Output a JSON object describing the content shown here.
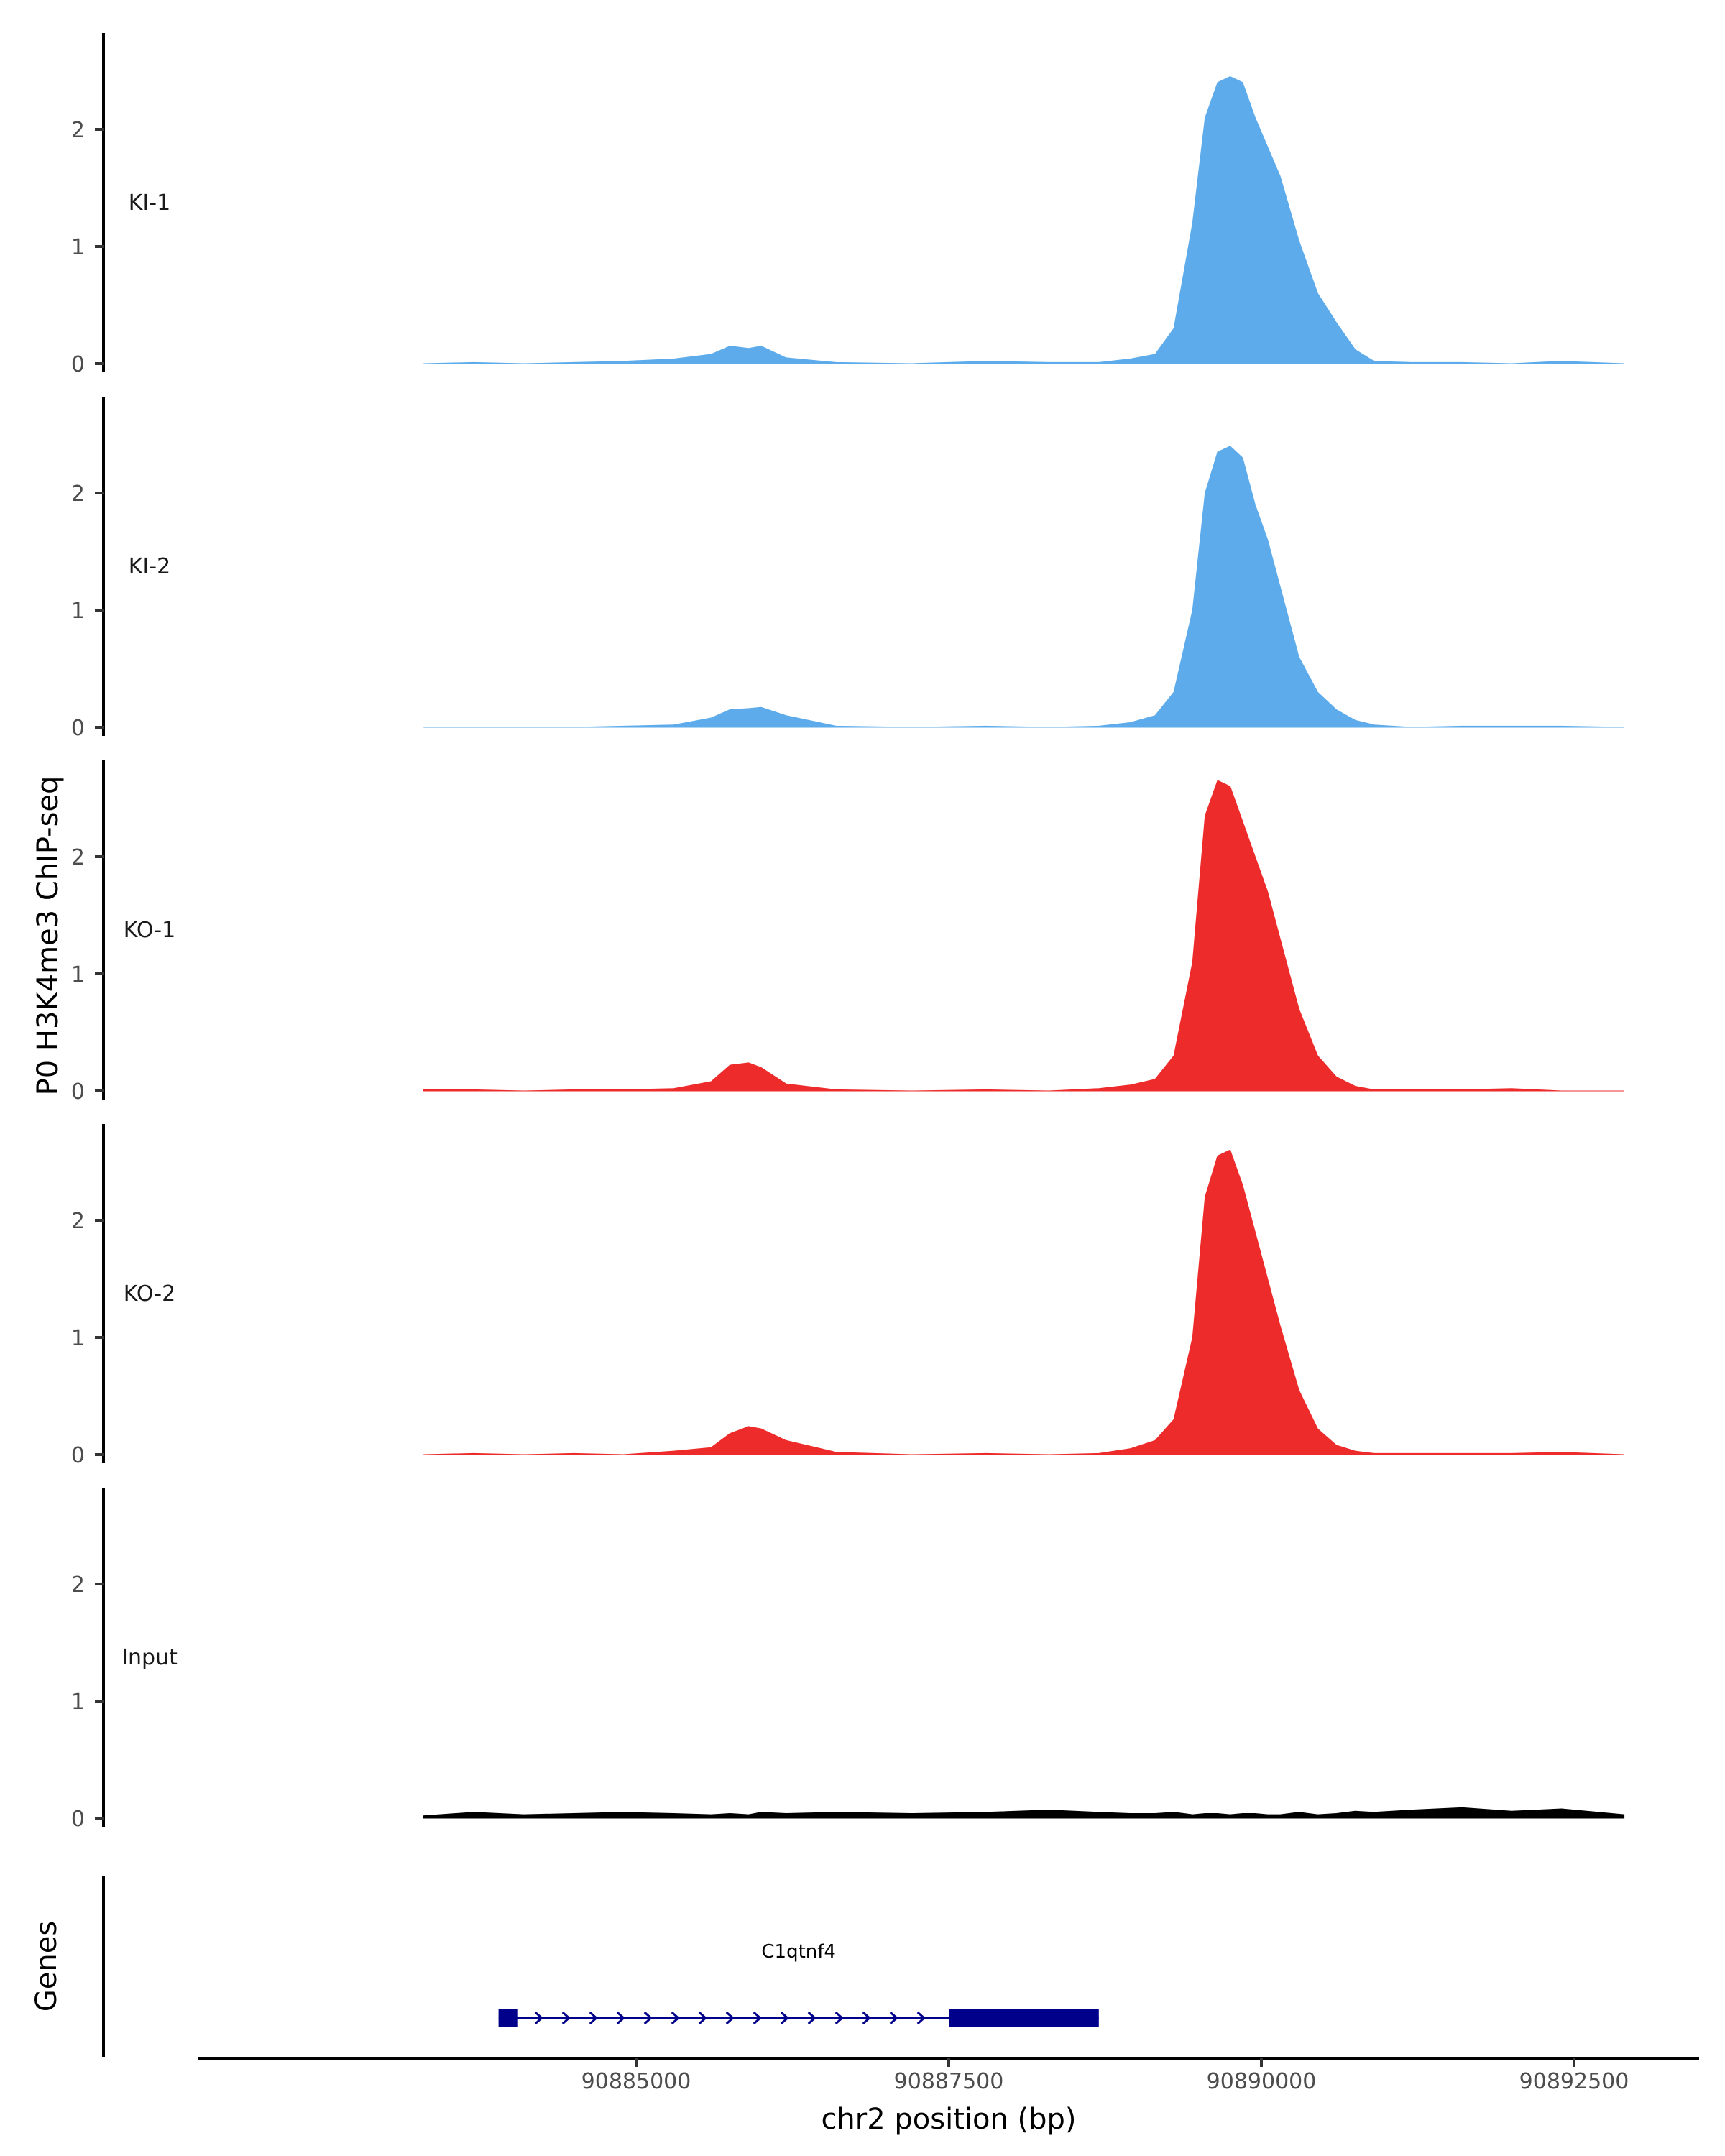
{
  "chart_data": {
    "type": "area",
    "title": "",
    "ylabel": "P0 H3K4me3 ChIP-seq",
    "xlabel": "chr2 position (bp)",
    "xlim": [
      90881500,
      90893500
    ],
    "ylim": [
      0,
      2.75
    ],
    "yticks": [
      0,
      1,
      2
    ],
    "xticks": [
      90885000,
      90887500,
      90890000,
      90892500
    ],
    "xtick_labels": [
      "90885000",
      "90887500",
      "90890000",
      "90892500"
    ],
    "peak_profile_x": [
      90883300,
      90883700,
      90884100,
      90884500,
      90884900,
      90885300,
      90885600,
      90885750,
      90885900,
      90886000,
      90886200,
      90886600,
      90887200,
      90887800,
      90888300,
      90888700,
      90888950,
      90889150,
      90889300,
      90889450,
      90889550,
      90889650,
      90889750,
      90889850,
      90889950,
      90890050,
      90890150,
      90890300,
      90890450,
      90890600,
      90890750,
      90890900,
      90891200,
      90891600,
      90892000,
      90892400,
      90892900
    ],
    "series": [
      {
        "name": "KI-1",
        "color": "#5dabea",
        "values": [
          0.0,
          0.01,
          0.0,
          0.01,
          0.02,
          0.04,
          0.08,
          0.15,
          0.13,
          0.15,
          0.05,
          0.01,
          0.0,
          0.02,
          0.01,
          0.01,
          0.04,
          0.08,
          0.3,
          1.2,
          2.1,
          2.4,
          2.45,
          2.4,
          2.1,
          1.85,
          1.6,
          1.05,
          0.6,
          0.35,
          0.12,
          0.02,
          0.01,
          0.01,
          0.0,
          0.02,
          0.0
        ]
      },
      {
        "name": "KI-2",
        "color": "#5dabea",
        "values": [
          0.0,
          0.0,
          0.0,
          0.0,
          0.01,
          0.02,
          0.08,
          0.15,
          0.16,
          0.17,
          0.1,
          0.01,
          0.0,
          0.01,
          0.0,
          0.01,
          0.04,
          0.1,
          0.3,
          1.0,
          2.0,
          2.35,
          2.4,
          2.3,
          1.9,
          1.6,
          1.2,
          0.6,
          0.3,
          0.15,
          0.06,
          0.02,
          0.0,
          0.01,
          0.01,
          0.01,
          0.0
        ]
      },
      {
        "name": "KO-1",
        "color": "#ee2b2b",
        "values": [
          0.01,
          0.01,
          0.0,
          0.01,
          0.01,
          0.02,
          0.08,
          0.22,
          0.24,
          0.2,
          0.06,
          0.01,
          0.0,
          0.01,
          0.0,
          0.02,
          0.05,
          0.1,
          0.3,
          1.1,
          2.35,
          2.65,
          2.6,
          2.3,
          2.0,
          1.7,
          1.3,
          0.7,
          0.3,
          0.12,
          0.04,
          0.01,
          0.01,
          0.01,
          0.02,
          0.0,
          0.0
        ]
      },
      {
        "name": "KO-2",
        "color": "#ee2b2b",
        "values": [
          0.0,
          0.01,
          0.0,
          0.01,
          0.0,
          0.03,
          0.06,
          0.18,
          0.24,
          0.22,
          0.12,
          0.02,
          0.0,
          0.01,
          0.0,
          0.01,
          0.05,
          0.12,
          0.3,
          1.0,
          2.2,
          2.55,
          2.6,
          2.3,
          1.9,
          1.5,
          1.1,
          0.55,
          0.22,
          0.08,
          0.03,
          0.01,
          0.01,
          0.01,
          0.01,
          0.02,
          0.0
        ]
      },
      {
        "name": "Input",
        "color": "#000000",
        "values": [
          0.02,
          0.05,
          0.03,
          0.04,
          0.05,
          0.04,
          0.03,
          0.04,
          0.03,
          0.05,
          0.04,
          0.05,
          0.04,
          0.05,
          0.07,
          0.05,
          0.04,
          0.04,
          0.05,
          0.03,
          0.04,
          0.04,
          0.03,
          0.04,
          0.04,
          0.03,
          0.03,
          0.05,
          0.03,
          0.04,
          0.06,
          0.05,
          0.07,
          0.09,
          0.06,
          0.08,
          0.03
        ]
      }
    ],
    "gene_track": {
      "label": "Genes",
      "gene_name": "C1qtnf4",
      "color": "#00008b",
      "start": 90883900,
      "end": 90888700,
      "thin_exon": [
        90883900,
        90884050
      ],
      "thick_exon": [
        90887500,
        90888700
      ],
      "strand": "+"
    },
    "grid": false,
    "legend": "none"
  }
}
